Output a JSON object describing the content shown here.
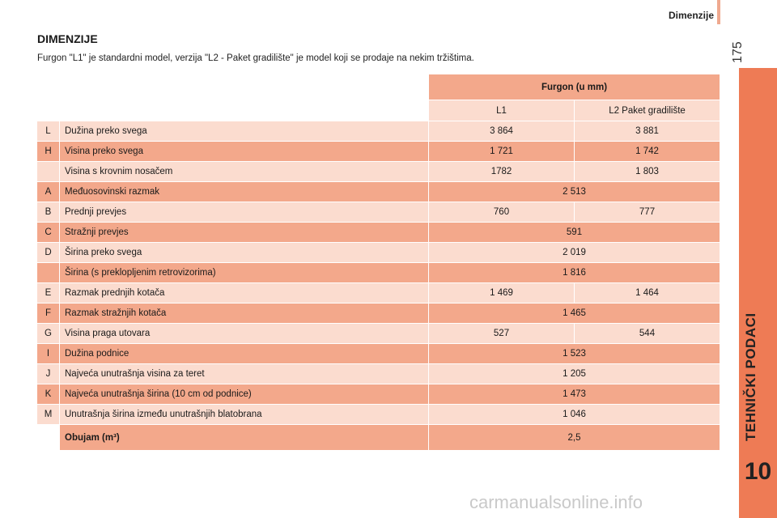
{
  "header": {
    "section": "Dimenzije",
    "page_number": "175"
  },
  "sidebar": {
    "title": "TEHNIČKI PODACI",
    "chapter": "10"
  },
  "document": {
    "title": "DIMENZIJE",
    "intro": "Furgon \"L1\" je standardni model, verzija \"L2 - Paket gradilište\" je model koji se prodaje na nekim tržištima."
  },
  "table": {
    "group_header": "Furgon (u mm)",
    "col_l1": "L1",
    "col_l2": "L2 Paket gradilište",
    "rows": [
      {
        "code": "L",
        "name": "Dužina preko svega",
        "l1": "3 864",
        "l2": "3 881"
      },
      {
        "code": "H",
        "name": "Visina preko svega",
        "l1": "1 721",
        "l2": "1 742"
      },
      {
        "code": "",
        "name": "Visina s krovnim nosačem",
        "l1": "1782",
        "l2": "1 803"
      },
      {
        "code": "A",
        "name": "Međuosovinski razmak",
        "both": "2 513"
      },
      {
        "code": "B",
        "name": "Prednji prevjes",
        "l1": "760",
        "l2": "777"
      },
      {
        "code": "C",
        "name": "Stražnji prevjes",
        "both": "591"
      },
      {
        "code": "D",
        "name": "Širina preko svega",
        "both": "2 019"
      },
      {
        "code": "",
        "name": "Širina (s preklopljenim retrovizorima)",
        "both": "1 816"
      },
      {
        "code": "E",
        "name": "Razmak prednjih kotača",
        "l1": "1 469",
        "l2": "1 464"
      },
      {
        "code": "F",
        "name": "Razmak stražnjih kotača",
        "both": "1 465"
      },
      {
        "code": "G",
        "name": "Visina praga utovara",
        "l1": "527",
        "l2": "544"
      },
      {
        "code": "I",
        "name": "Dužina podnice",
        "both": "1 523"
      },
      {
        "code": "J",
        "name": "Najveća unutrašnja visina za teret",
        "both": "1 205"
      },
      {
        "code": "K",
        "name": "Najveća unutrašnja širina (10 cm od podnice)",
        "both": "1 473"
      },
      {
        "code": "M",
        "name": "Unutrašnja širina između unutrašnjih blatobrana",
        "both": "1 046"
      }
    ],
    "volume_label": "Obujam (m³)",
    "volume_value": "2,5"
  },
  "watermark": "carmanualsonline.info",
  "colors": {
    "accent": "#ee7b55",
    "row_dark": "#f3a88b",
    "row_light": "#fbdccf"
  }
}
